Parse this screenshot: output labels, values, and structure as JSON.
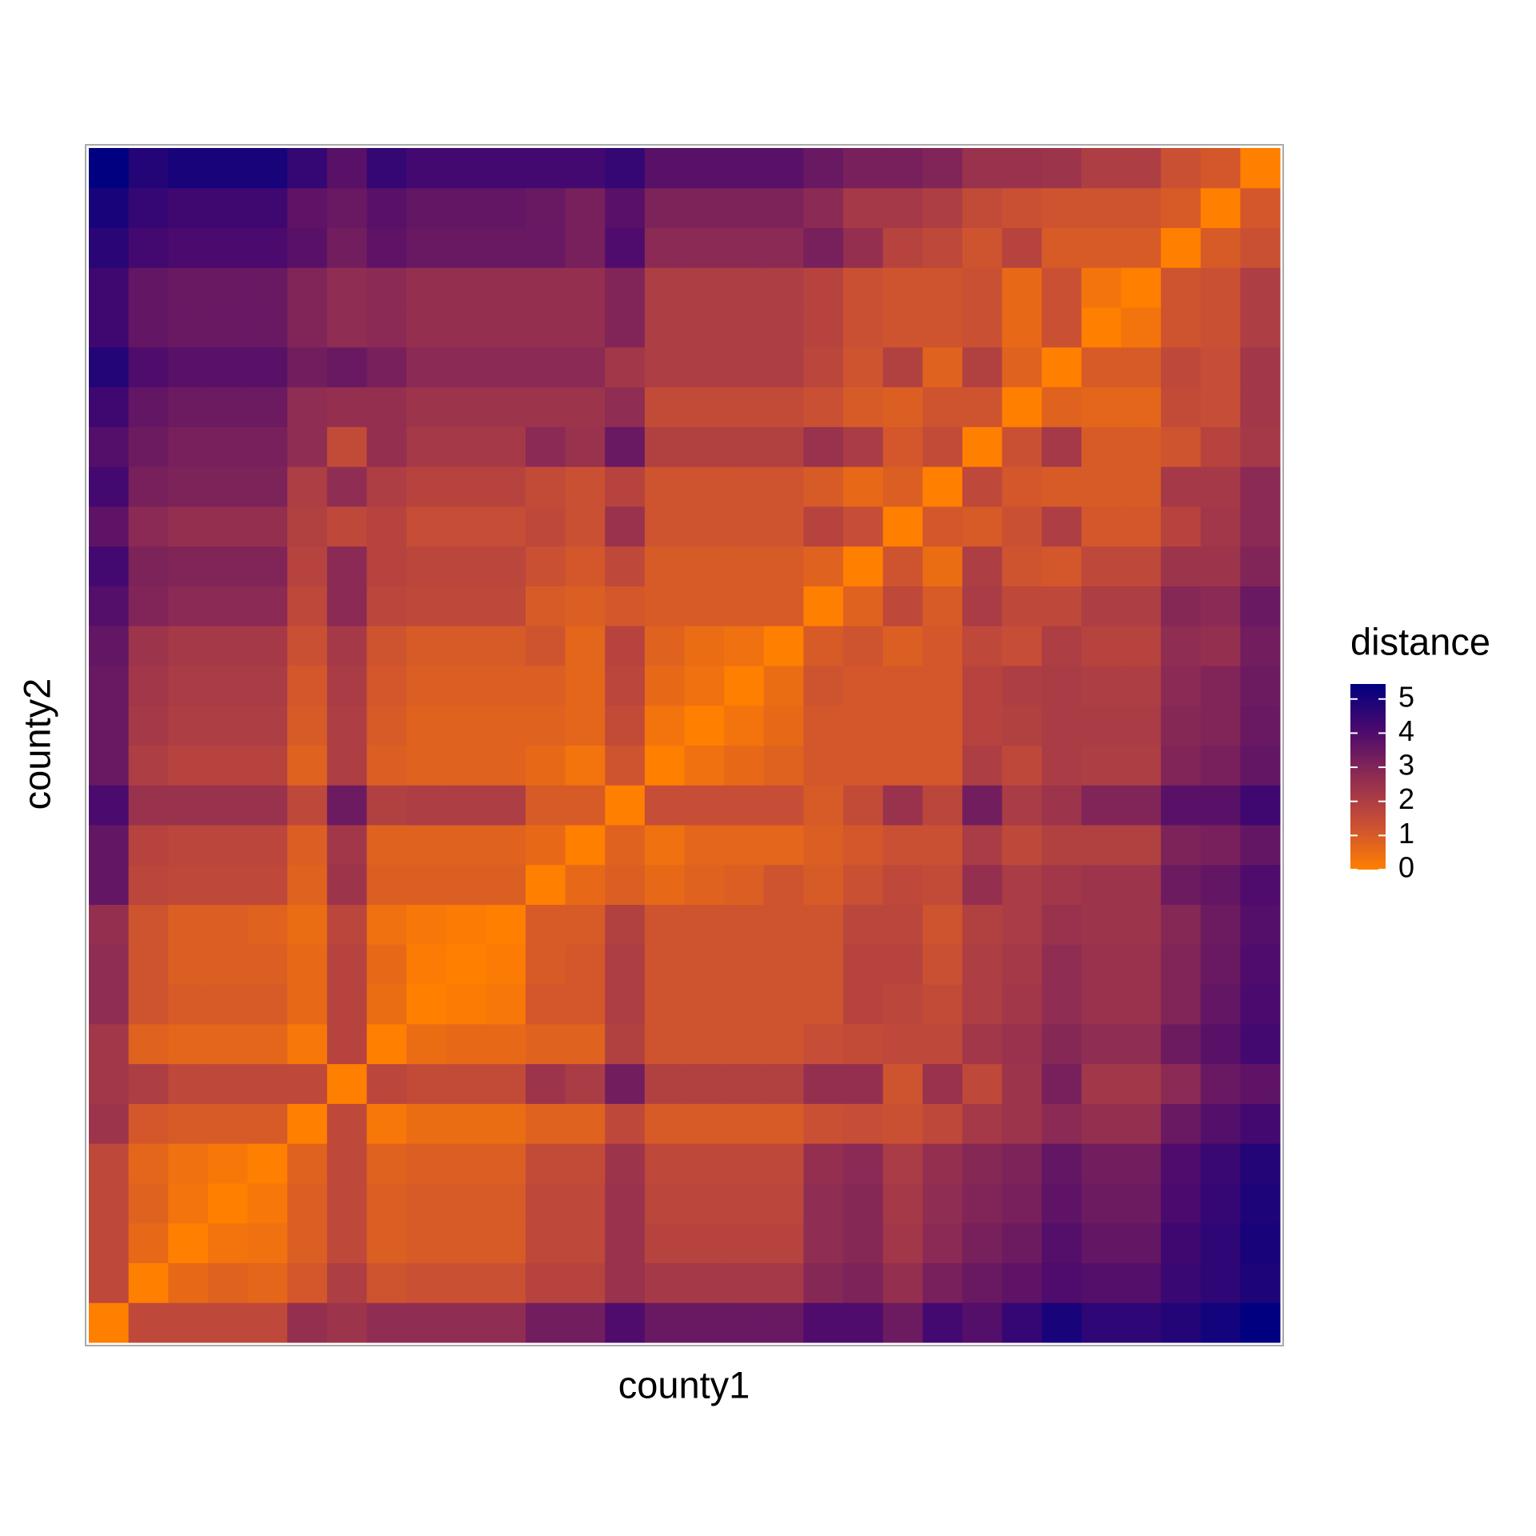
{
  "chart_data": {
    "type": "heatmap",
    "x_label": "county1",
    "y_label": "county2",
    "legend_title": "distance",
    "x_categories": [
      null,
      null,
      null,
      null,
      null,
      null,
      null,
      null,
      null,
      null,
      null,
      null,
      null,
      null,
      null,
      null,
      null,
      null,
      null,
      null,
      null,
      null,
      null,
      null,
      null,
      null,
      null,
      null,
      null,
      null
    ],
    "y_categories": [
      null,
      null,
      null,
      null,
      null,
      null,
      null,
      null,
      null,
      null,
      null,
      null,
      null,
      null,
      null,
      null,
      null,
      null,
      null,
      null,
      null,
      null,
      null,
      null,
      null,
      null,
      null,
      null,
      null,
      null
    ],
    "values": [
      [
        0,
        1.6,
        1.6,
        1.6,
        1.6,
        2.6,
        2.4,
        2.7,
        2.7,
        2.7,
        2.7,
        3.3,
        3.3,
        4.0,
        3.5,
        3.5,
        3.5,
        3.5,
        4.0,
        4.0,
        3.4,
        4.2,
        3.9,
        4.5,
        5.0,
        4.6,
        4.6,
        4.8,
        5.1,
        5.44
      ],
      [
        1.6,
        0,
        0.6,
        0.8,
        0.7,
        1.1,
        2.0,
        1.2,
        1.3,
        1.3,
        1.3,
        1.8,
        1.8,
        2.5,
        2.2,
        2.2,
        2.2,
        2.2,
        2.9,
        3.1,
        2.6,
        3.2,
        3.5,
        3.7,
        4.0,
        3.9,
        3.9,
        4.4,
        4.6,
        4.9
      ],
      [
        1.6,
        0.6,
        0,
        0.3,
        0.4,
        0.9,
        1.6,
        0.9,
        1.0,
        1.0,
        1.0,
        1.6,
        1.6,
        2.5,
        1.8,
        1.8,
        1.8,
        1.8,
        2.7,
        2.9,
        2.3,
        2.8,
        3.2,
        3.4,
        3.9,
        3.6,
        3.6,
        4.3,
        4.6,
        5.0
      ],
      [
        1.6,
        0.8,
        0.3,
        0,
        0.2,
        0.9,
        1.6,
        0.9,
        1.0,
        1.0,
        1.0,
        1.6,
        1.6,
        2.5,
        1.7,
        1.7,
        1.7,
        1.7,
        2.7,
        2.9,
        2.2,
        2.7,
        3.0,
        3.2,
        3.7,
        3.4,
        3.4,
        4.1,
        4.5,
        4.9
      ],
      [
        1.6,
        0.7,
        0.4,
        0.2,
        0,
        0.8,
        1.6,
        0.8,
        0.9,
        0.9,
        0.9,
        1.5,
        1.5,
        2.4,
        1.6,
        1.6,
        1.6,
        1.6,
        2.6,
        2.8,
        2.1,
        2.6,
        2.9,
        3.1,
        3.6,
        3.3,
        3.3,
        4.0,
        4.4,
        4.8
      ],
      [
        2.4,
        1.1,
        1.0,
        1.0,
        1.0,
        0,
        1.6,
        0.2,
        0.5,
        0.5,
        0.5,
        0.8,
        0.8,
        1.6,
        1.0,
        1.0,
        1.0,
        1.0,
        1.3,
        1.4,
        1.3,
        1.6,
        2.2,
        2.4,
        2.8,
        2.6,
        2.6,
        3.5,
        3.9,
        4.2
      ],
      [
        2.3,
        2.0,
        1.6,
        1.6,
        1.6,
        1.6,
        0,
        1.7,
        1.5,
        1.5,
        1.5,
        2.4,
        2.1,
        3.3,
        1.9,
        1.9,
        1.9,
        1.9,
        2.6,
        2.6,
        1.2,
        2.5,
        1.6,
        2.4,
        3.2,
        2.3,
        2.3,
        2.8,
        3.5,
        3.7
      ],
      [
        2.3,
        0.8,
        0.7,
        0.7,
        0.7,
        0.2,
        1.8,
        0,
        0.5,
        0.6,
        0.6,
        0.8,
        0.8,
        1.9,
        1.2,
        1.2,
        1.2,
        1.2,
        1.4,
        1.5,
        1.6,
        1.6,
        2.3,
        2.5,
        2.9,
        2.7,
        2.7,
        3.4,
        3.8,
        4.2
      ],
      [
        2.7,
        1.2,
        1.0,
        1.0,
        1.0,
        0.6,
        1.8,
        0.5,
        0,
        0.1,
        0.2,
        1.1,
        1.1,
        2.0,
        1.2,
        1.2,
        1.2,
        1.2,
        1.2,
        1.8,
        1.7,
        1.5,
        2.0,
        2.3,
        2.7,
        2.5,
        2.5,
        3.0,
        3.6,
        4.1
      ],
      [
        2.7,
        1.2,
        0.9,
        0.9,
        0.9,
        0.6,
        1.8,
        0.6,
        0.1,
        0,
        0.1,
        1.0,
        1.1,
        2.0,
        1.2,
        1.2,
        1.2,
        1.2,
        1.2,
        1.8,
        1.8,
        1.3,
        2.0,
        2.2,
        2.7,
        2.5,
        2.5,
        3.0,
        3.5,
        4.0
      ],
      [
        2.6,
        1.2,
        0.9,
        0.9,
        0.8,
        0.5,
        1.7,
        0.4,
        0.2,
        0.1,
        0,
        1.0,
        1.0,
        1.9,
        1.2,
        1.2,
        1.2,
        1.2,
        1.2,
        1.7,
        1.7,
        1.2,
        1.9,
        2.1,
        2.5,
        2.4,
        2.4,
        2.9,
        3.4,
        3.9
      ],
      [
        3.6,
        1.7,
        1.6,
        1.6,
        1.6,
        0.8,
        2.4,
        0.9,
        0.9,
        0.9,
        0.9,
        0,
        0.6,
        0.9,
        0.6,
        0.8,
        0.9,
        1.2,
        1.0,
        1.3,
        1.6,
        1.5,
        2.6,
        2.1,
        2.3,
        2.4,
        2.4,
        3.4,
        3.6,
        4.0
      ],
      [
        3.6,
        1.8,
        1.7,
        1.7,
        1.7,
        0.9,
        2.3,
        0.8,
        0.8,
        0.8,
        0.8,
        0.6,
        0,
        0.8,
        0.4,
        0.7,
        0.7,
        0.7,
        0.9,
        1.1,
        1.3,
        1.3,
        2.1,
        1.6,
        1.9,
        1.9,
        1.9,
        3.1,
        3.2,
        3.6
      ],
      [
        4.1,
        2.5,
        2.5,
        2.5,
        2.5,
        1.6,
        3.4,
        1.9,
        2.0,
        2.0,
        2.0,
        1.0,
        1.0,
        0,
        1.4,
        1.4,
        1.4,
        1.4,
        1.0,
        1.5,
        2.5,
        1.7,
        3.3,
        2.1,
        2.4,
        3.0,
        3.0,
        3.8,
        3.8,
        4.3
      ],
      [
        3.5,
        2.0,
        1.8,
        1.8,
        1.8,
        0.8,
        2.0,
        0.9,
        0.8,
        0.8,
        0.8,
        0.6,
        0.3,
        1.2,
        0,
        0.4,
        0.6,
        0.8,
        1.1,
        1.1,
        1.1,
        1.1,
        2.0,
        1.6,
        2.1,
        2.0,
        2.0,
        3.0,
        3.2,
        3.6
      ],
      [
        3.5,
        2.2,
        2.0,
        2.0,
        2.0,
        1.0,
        2.0,
        1.0,
        0.8,
        0.8,
        0.8,
        0.8,
        0.7,
        1.5,
        0.3,
        0,
        0.3,
        0.6,
        1.1,
        1.1,
        1.1,
        1.1,
        1.8,
        1.9,
        2.1,
        2.1,
        2.1,
        2.9,
        3.0,
        3.5
      ],
      [
        3.5,
        2.3,
        2.1,
        2.1,
        2.1,
        1.1,
        2.1,
        1.1,
        0.9,
        0.9,
        0.9,
        0.9,
        0.7,
        1.7,
        0.6,
        0.4,
        0,
        0.5,
        1.2,
        1.1,
        1.1,
        1.1,
        1.8,
        2.0,
        2.1,
        2.0,
        2.0,
        2.8,
        3.0,
        3.4
      ],
      [
        3.6,
        2.4,
        2.2,
        2.2,
        2.2,
        1.3,
        2.2,
        1.2,
        1.0,
        1.0,
        1.0,
        1.2,
        0.7,
        1.8,
        0.8,
        0.5,
        0.4,
        0,
        1.0,
        1.2,
        0.9,
        1.1,
        1.6,
        1.4,
        2.0,
        1.8,
        1.8,
        2.7,
        2.6,
        3.3
      ],
      [
        3.9,
        3.0,
        2.8,
        2.8,
        2.8,
        1.6,
        2.8,
        1.7,
        1.6,
        1.6,
        1.6,
        1.0,
        0.9,
        1.1,
        1.0,
        1.0,
        1.0,
        1.0,
        0,
        0.8,
        1.6,
        1.0,
        2.1,
        1.6,
        1.6,
        2.0,
        2.0,
        2.9,
        2.8,
        3.5
      ],
      [
        4.2,
        3.1,
        3.0,
        3.0,
        3.0,
        1.8,
        2.8,
        1.8,
        1.7,
        1.7,
        1.7,
        1.3,
        1.1,
        1.6,
        1.0,
        1.0,
        1.0,
        1.0,
        0.8,
        0,
        1.2,
        0.5,
        2.0,
        1.2,
        1.1,
        1.6,
        1.6,
        2.4,
        2.4,
        3.0
      ],
      [
        3.7,
        2.8,
        2.6,
        2.6,
        2.6,
        1.9,
        1.6,
        1.8,
        1.4,
        1.4,
        1.4,
        1.6,
        1.3,
        2.5,
        1.2,
        1.2,
        1.2,
        1.2,
        1.8,
        1.4,
        0,
        1.1,
        1.0,
        1.3,
        2.0,
        1.1,
        1.1,
        1.8,
        2.3,
        2.8
      ],
      [
        4.2,
        3.2,
        3.1,
        3.1,
        3.1,
        2.0,
        2.7,
        2.0,
        1.8,
        1.8,
        1.8,
        1.5,
        1.3,
        1.8,
        1.2,
        1.2,
        1.2,
        1.2,
        1.0,
        0.6,
        0.9,
        0,
        1.6,
        1.1,
        1.0,
        1.0,
        1.0,
        2.2,
        2.2,
        2.8
      ],
      [
        3.9,
        3.4,
        3.2,
        3.2,
        3.2,
        2.7,
        1.5,
        2.6,
        2.2,
        2.2,
        2.2,
        2.8,
        2.5,
        3.5,
        1.9,
        1.9,
        1.9,
        1.9,
        2.5,
        2.1,
        1.1,
        1.5,
        0,
        1.3,
        2.2,
        1.0,
        1.0,
        1.2,
        1.8,
        2.2
      ],
      [
        4.3,
        3.6,
        3.4,
        3.4,
        3.4,
        2.7,
        2.6,
        2.6,
        2.4,
        2.4,
        2.4,
        2.4,
        2.4,
        2.7,
        1.5,
        1.5,
        1.5,
        1.5,
        1.3,
        1.0,
        0.9,
        1.2,
        1.2,
        0,
        0.8,
        0.7,
        0.7,
        1.5,
        1.4,
        2.3
      ],
      [
        4.8,
        4.0,
        3.8,
        3.8,
        3.8,
        3.3,
        3.5,
        3.2,
        2.8,
        2.8,
        2.8,
        2.8,
        2.8,
        2.3,
        2.0,
        2.0,
        2.0,
        2.0,
        1.7,
        1.2,
        1.9,
        0.8,
        1.9,
        0.8,
        0,
        1.0,
        1.0,
        1.6,
        1.4,
        2.3
      ],
      [
        4.3,
        3.6,
        3.5,
        3.5,
        3.5,
        3.0,
        2.7,
        2.8,
        2.6,
        2.6,
        2.6,
        2.6,
        2.6,
        3.0,
        2.0,
        2.0,
        2.0,
        2.0,
        1.8,
        1.3,
        1.2,
        1.2,
        1.3,
        0.6,
        1.3,
        0,
        0.3,
        1.2,
        1.3,
        2.0
      ],
      [
        4.3,
        3.6,
        3.5,
        3.5,
        3.5,
        3.0,
        2.7,
        2.8,
        2.6,
        2.6,
        2.6,
        2.6,
        2.6,
        3.0,
        2.0,
        2.0,
        2.0,
        2.0,
        1.8,
        1.3,
        1.2,
        1.2,
        1.3,
        0.6,
        1.3,
        0.3,
        0,
        1.2,
        1.3,
        2.0
      ],
      [
        4.7,
        4.2,
        4.1,
        4.1,
        4.1,
        3.8,
        3.3,
        3.7,
        3.5,
        3.5,
        3.5,
        3.5,
        3.2,
        4.0,
        2.8,
        2.8,
        2.8,
        2.8,
        3.2,
        2.6,
        1.8,
        1.6,
        1.2,
        1.8,
        1.0,
        1.0,
        1.0,
        0,
        1.0,
        1.3
      ],
      [
        5.0,
        4.5,
        4.3,
        4.3,
        4.3,
        3.7,
        3.5,
        3.8,
        3.6,
        3.6,
        3.6,
        3.5,
        3.2,
        3.8,
        3.1,
        3.1,
        3.1,
        3.1,
        2.8,
        2.2,
        2.2,
        2.0,
        1.5,
        1.3,
        1.2,
        1.2,
        1.2,
        1.0,
        0,
        1.1
      ],
      [
        5.44,
        4.8,
        5.0,
        5.0,
        5.0,
        4.5,
        3.8,
        4.5,
        4.2,
        4.2,
        4.2,
        4.2,
        4.2,
        4.5,
        3.8,
        3.8,
        3.8,
        3.8,
        3.5,
        3.2,
        3.2,
        3.0,
        2.5,
        2.5,
        2.4,
        2.0,
        2.0,
        1.3,
        1.1,
        0
      ]
    ],
    "clim": [
      0,
      5.44
    ],
    "cticks": [
      0,
      1,
      2,
      3,
      4,
      5
    ],
    "colors": [
      "#ff7f00",
      "#c84e35",
      "#8f2c52",
      "#4b0a6e",
      "#000080"
    ]
  }
}
